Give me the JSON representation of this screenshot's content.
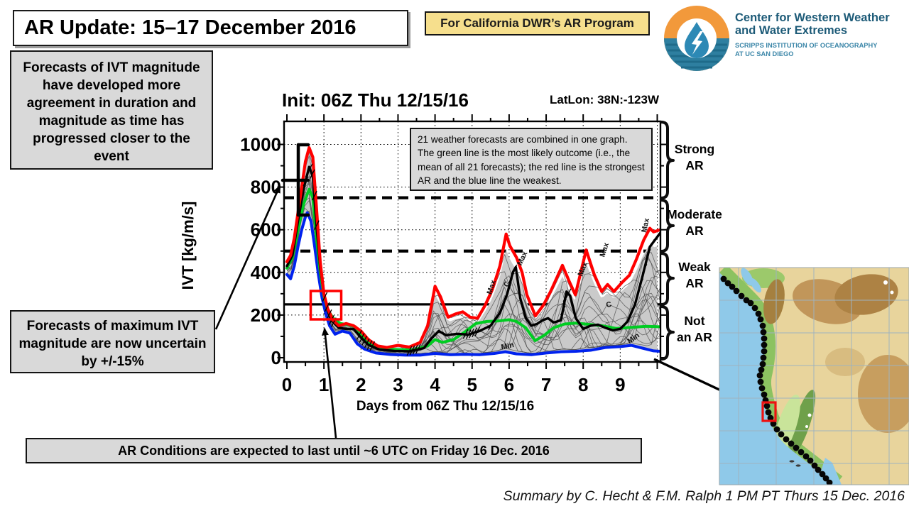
{
  "slide": {
    "title": "AR Update: 15–17 December 2016",
    "badge": "For California DWR’s AR Program",
    "credit": "Summary by C. Hecht & F.M. Ralph 1 PM PT Thurs 15 Dec. 2016"
  },
  "logo": {
    "org_line1": "Center for Western Weather",
    "org_line2": "and Water Extremes",
    "sub_line1": "SCRIPPS INSTITUTION OF OCEANOGRAPHY",
    "sub_line2": "AT UC SAN DIEGO"
  },
  "callouts": {
    "agreement": "Forecasts of IVT magnitude have developed more agreement in duration and magnitude as time has progressed closer to the event",
    "uncertainty": "Forecasts of maximum IVT magnitude are now uncertain by +/-15%",
    "duration": "AR Conditions are expected to last until ~6 UTC on Friday 16 Dec. 2016",
    "explainer": "21 weather forecasts are combined in one graph. The green line is the most likely outcome (i.e., the mean of all 21 forecasts); the red line is the strongest AR and the blue line the weakest."
  },
  "colors": {
    "accent_red": "#FF0000",
    "mean_green": "#00CC22",
    "min_blue": "#0022EE",
    "control_black": "#000000",
    "box_gray": "#D9D9D9",
    "badge_yellow": "#F6DF8D",
    "logo_orange": "#F2993B",
    "logo_teal": "#2E7FA0",
    "logo_navy": "#1C5A77",
    "plume_gray": "#CACACA"
  },
  "chart_data": {
    "type": "line",
    "title": "Init: 06Z Thu 12/15/16",
    "latlon_label": "LatLon: 38N:-123W",
    "xlabel": "Days from 06Z Thu 12/15/16",
    "ylabel": "IVT [kg/m/s]",
    "xlim": [
      0,
      10.1
    ],
    "ylim": [
      -20,
      1103
    ],
    "xticks": [
      0,
      1,
      2,
      3,
      4,
      5,
      6,
      7,
      8,
      9
    ],
    "yticks": [
      0,
      200,
      400,
      600,
      800,
      1000
    ],
    "grid": "dotted, every 1 day and every 200 IVT",
    "ensemble_count": 21,
    "thresholds": [
      {
        "value": 250,
        "style": "solid"
      },
      {
        "value": 500,
        "style": "dashed"
      },
      {
        "value": 750,
        "style": "dashed"
      }
    ],
    "bands": [
      {
        "label": "Strong AR",
        "range": [
          750,
          1100
        ]
      },
      {
        "label": "Moderate AR",
        "range": [
          500,
          750
        ]
      },
      {
        "label": "Weak AR",
        "range": [
          250,
          500
        ]
      },
      {
        "label": "Not an AR",
        "range": [
          0,
          250
        ]
      }
    ],
    "band_labels": [
      {
        "line1": "Strong",
        "line2": "AR"
      },
      {
        "line1": "Moderate",
        "line2": "AR"
      },
      {
        "line1": "Weak",
        "line2": "AR"
      },
      {
        "line1": "Not",
        "line2": "an AR"
      }
    ],
    "series": [
      {
        "name": "strongest (max)",
        "color": "#FF0000",
        "width": 4.2,
        "points": [
          [
            0,
            450
          ],
          [
            0.1,
            480
          ],
          [
            0.2,
            560
          ],
          [
            0.3,
            680
          ],
          [
            0.4,
            800
          ],
          [
            0.5,
            920
          ],
          [
            0.6,
            985
          ],
          [
            0.7,
            940
          ],
          [
            0.8,
            700
          ],
          [
            0.9,
            450
          ],
          [
            1.0,
            300
          ],
          [
            1.1,
            230
          ],
          [
            1.25,
            175
          ],
          [
            1.4,
            150
          ],
          [
            1.6,
            160
          ],
          [
            1.8,
            150
          ],
          [
            2.0,
            125
          ],
          [
            2.2,
            85
          ],
          [
            2.45,
            55
          ],
          [
            2.7,
            48
          ],
          [
            3.0,
            58
          ],
          [
            3.3,
            50
          ],
          [
            3.6,
            72
          ],
          [
            3.8,
            150
          ],
          [
            4.0,
            335
          ],
          [
            4.15,
            285
          ],
          [
            4.35,
            190
          ],
          [
            4.55,
            205
          ],
          [
            4.75,
            215
          ],
          [
            4.95,
            190
          ],
          [
            5.15,
            185
          ],
          [
            5.35,
            245
          ],
          [
            5.55,
            320
          ],
          [
            5.75,
            430
          ],
          [
            5.92,
            580
          ],
          [
            6.02,
            525
          ],
          [
            6.2,
            470
          ],
          [
            6.35,
            400
          ],
          [
            6.48,
            295
          ],
          [
            6.71,
            196
          ],
          [
            6.92,
            245
          ],
          [
            7.12,
            310
          ],
          [
            7.44,
            433
          ],
          [
            7.63,
            355
          ],
          [
            7.79,
            295
          ],
          [
            8.08,
            505
          ],
          [
            8.3,
            390
          ],
          [
            8.5,
            310
          ],
          [
            8.66,
            343
          ],
          [
            8.83,
            310
          ],
          [
            9.05,
            353
          ],
          [
            9.25,
            387
          ],
          [
            9.44,
            463
          ],
          [
            9.63,
            550
          ],
          [
            9.8,
            607
          ],
          [
            9.9,
            590
          ],
          [
            10.08,
            600
          ]
        ]
      },
      {
        "name": "control",
        "color": "#000000",
        "width": 3.4,
        "points": [
          [
            0,
            430
          ],
          [
            0.15,
            480
          ],
          [
            0.3,
            640
          ],
          [
            0.45,
            790
          ],
          [
            0.6,
            895
          ],
          [
            0.7,
            850
          ],
          [
            0.8,
            620
          ],
          [
            0.9,
            420
          ],
          [
            1.0,
            300
          ],
          [
            1.1,
            220
          ],
          [
            1.2,
            175
          ],
          [
            1.4,
            140
          ],
          [
            1.6,
            135
          ],
          [
            1.8,
            135
          ],
          [
            2.0,
            95
          ],
          [
            2.2,
            60
          ],
          [
            2.5,
            38
          ],
          [
            2.9,
            32
          ],
          [
            3.3,
            30
          ],
          [
            3.7,
            45
          ],
          [
            3.9,
            90
          ],
          [
            4.1,
            125
          ],
          [
            4.3,
            105
          ],
          [
            4.6,
            112
          ],
          [
            4.9,
            108
          ],
          [
            5.2,
            125
          ],
          [
            5.5,
            150
          ],
          [
            5.75,
            210
          ],
          [
            5.95,
            300
          ],
          [
            6.1,
            400
          ],
          [
            6.18,
            425
          ],
          [
            6.3,
            280
          ],
          [
            6.45,
            185
          ],
          [
            6.6,
            150
          ],
          [
            6.75,
            158
          ],
          [
            6.9,
            175
          ],
          [
            7.05,
            185
          ],
          [
            7.2,
            165
          ],
          [
            7.4,
            175
          ],
          [
            7.55,
            310
          ],
          [
            7.65,
            290
          ],
          [
            7.8,
            185
          ],
          [
            8.0,
            135
          ],
          [
            8.2,
            150
          ],
          [
            8.4,
            155
          ],
          [
            8.6,
            140
          ],
          [
            8.8,
            128
          ],
          [
            9.0,
            135
          ],
          [
            9.2,
            170
          ],
          [
            9.4,
            250
          ],
          [
            9.6,
            380
          ],
          [
            9.8,
            520
          ],
          [
            10.08,
            585
          ]
        ]
      },
      {
        "name": "mean (most likely)",
        "color": "#00CC22",
        "width": 4,
        "points": [
          [
            0,
            420
          ],
          [
            0.15,
            470
          ],
          [
            0.3,
            600
          ],
          [
            0.45,
            720
          ],
          [
            0.6,
            790
          ],
          [
            0.7,
            750
          ],
          [
            0.8,
            560
          ],
          [
            0.9,
            400
          ],
          [
            1.0,
            290
          ],
          [
            1.1,
            225
          ],
          [
            1.25,
            185
          ],
          [
            1.45,
            160
          ],
          [
            1.65,
            155
          ],
          [
            1.85,
            145
          ],
          [
            2.05,
            100
          ],
          [
            2.3,
            60
          ],
          [
            2.6,
            42
          ],
          [
            3.0,
            38
          ],
          [
            3.4,
            36
          ],
          [
            3.8,
            55
          ],
          [
            4.0,
            85
          ],
          [
            4.2,
            72
          ],
          [
            4.5,
            85
          ],
          [
            4.8,
            120
          ],
          [
            5.1,
            160
          ],
          [
            5.4,
            170
          ],
          [
            5.7,
            172
          ],
          [
            6.0,
            178
          ],
          [
            6.2,
            170
          ],
          [
            6.45,
            140
          ],
          [
            6.7,
            80
          ],
          [
            6.95,
            105
          ],
          [
            7.2,
            140
          ],
          [
            7.5,
            158
          ],
          [
            7.8,
            162
          ],
          [
            8.1,
            157
          ],
          [
            8.5,
            150
          ],
          [
            8.9,
            137
          ],
          [
            9.3,
            142
          ],
          [
            9.7,
            147
          ],
          [
            10.08,
            145
          ]
        ]
      },
      {
        "name": "weakest (min)",
        "color": "#0022EE",
        "width": 4,
        "points": [
          [
            0,
            390
          ],
          [
            0.1,
            370
          ],
          [
            0.2,
            430
          ],
          [
            0.3,
            520
          ],
          [
            0.4,
            600
          ],
          [
            0.5,
            660
          ],
          [
            0.55,
            680
          ],
          [
            0.65,
            640
          ],
          [
            0.75,
            520
          ],
          [
            0.85,
            390
          ],
          [
            0.95,
            280
          ],
          [
            1.05,
            205
          ],
          [
            1.15,
            150
          ],
          [
            1.3,
            110
          ],
          [
            1.5,
            125
          ],
          [
            1.7,
            115
          ],
          [
            1.9,
            65
          ],
          [
            2.1,
            40
          ],
          [
            2.4,
            22
          ],
          [
            2.8,
            15
          ],
          [
            3.2,
            12
          ],
          [
            3.6,
            12
          ],
          [
            4.0,
            20
          ],
          [
            4.4,
            14
          ],
          [
            4.8,
            16
          ],
          [
            5.2,
            14
          ],
          [
            5.6,
            20
          ],
          [
            5.9,
            28
          ],
          [
            6.2,
            18
          ],
          [
            6.6,
            14
          ],
          [
            7.0,
            22
          ],
          [
            7.4,
            28
          ],
          [
            7.8,
            30
          ],
          [
            8.2,
            35
          ],
          [
            8.6,
            48
          ],
          [
            9.0,
            52
          ],
          [
            9.3,
            58
          ],
          [
            9.6,
            45
          ],
          [
            9.9,
            32
          ],
          [
            10.08,
            30
          ]
        ]
      }
    ],
    "inline_labels": [
      {
        "text": "Max",
        "day": 5.52,
        "ivt": 295,
        "angle": -72
      },
      {
        "text": "Max",
        "day": 6.33,
        "ivt": 430,
        "angle": -65
      },
      {
        "text": "Max",
        "day": 7.97,
        "ivt": 380,
        "angle": -68
      },
      {
        "text": "Max",
        "day": 8.57,
        "ivt": 470,
        "angle": -72
      },
      {
        "text": "Max",
        "day": 9.7,
        "ivt": 585,
        "angle": -78
      },
      {
        "text": "Min",
        "day": 5.8,
        "ivt": 38,
        "angle": -12
      },
      {
        "text": "Min",
        "day": 9.25,
        "ivt": 65,
        "angle": -35
      },
      {
        "text": "C",
        "day": 5.98,
        "ivt": 330,
        "angle": -72
      },
      {
        "text": "C",
        "day": 8.64,
        "ivt": 235,
        "angle": -15
      }
    ],
    "barb_days": [
      0.5,
      0.56,
      0.62,
      0.68,
      0.74,
      0.8,
      1.02,
      1.08,
      1.14,
      1.2,
      1.26,
      1.95,
      2.02,
      2.09,
      2.16,
      2.23,
      2.3,
      3.3,
      3.38,
      3.46,
      3.54,
      4.82,
      4.9,
      4.98,
      5.06,
      5.14,
      5.5,
      5.58,
      5.66,
      5.9,
      5.98,
      6.06,
      6.14,
      7.45,
      7.52,
      7.6,
      9.55,
      9.65,
      9.75,
      9.85
    ],
    "highlight_box": {
      "day_from": 0.65,
      "day_to": 1.47,
      "ivt_from": 180,
      "ivt_to": 312
    },
    "uncertainty_bracket": {
      "ivt_from": 665,
      "ivt_to": 995,
      "at_day": 0.32
    }
  }
}
